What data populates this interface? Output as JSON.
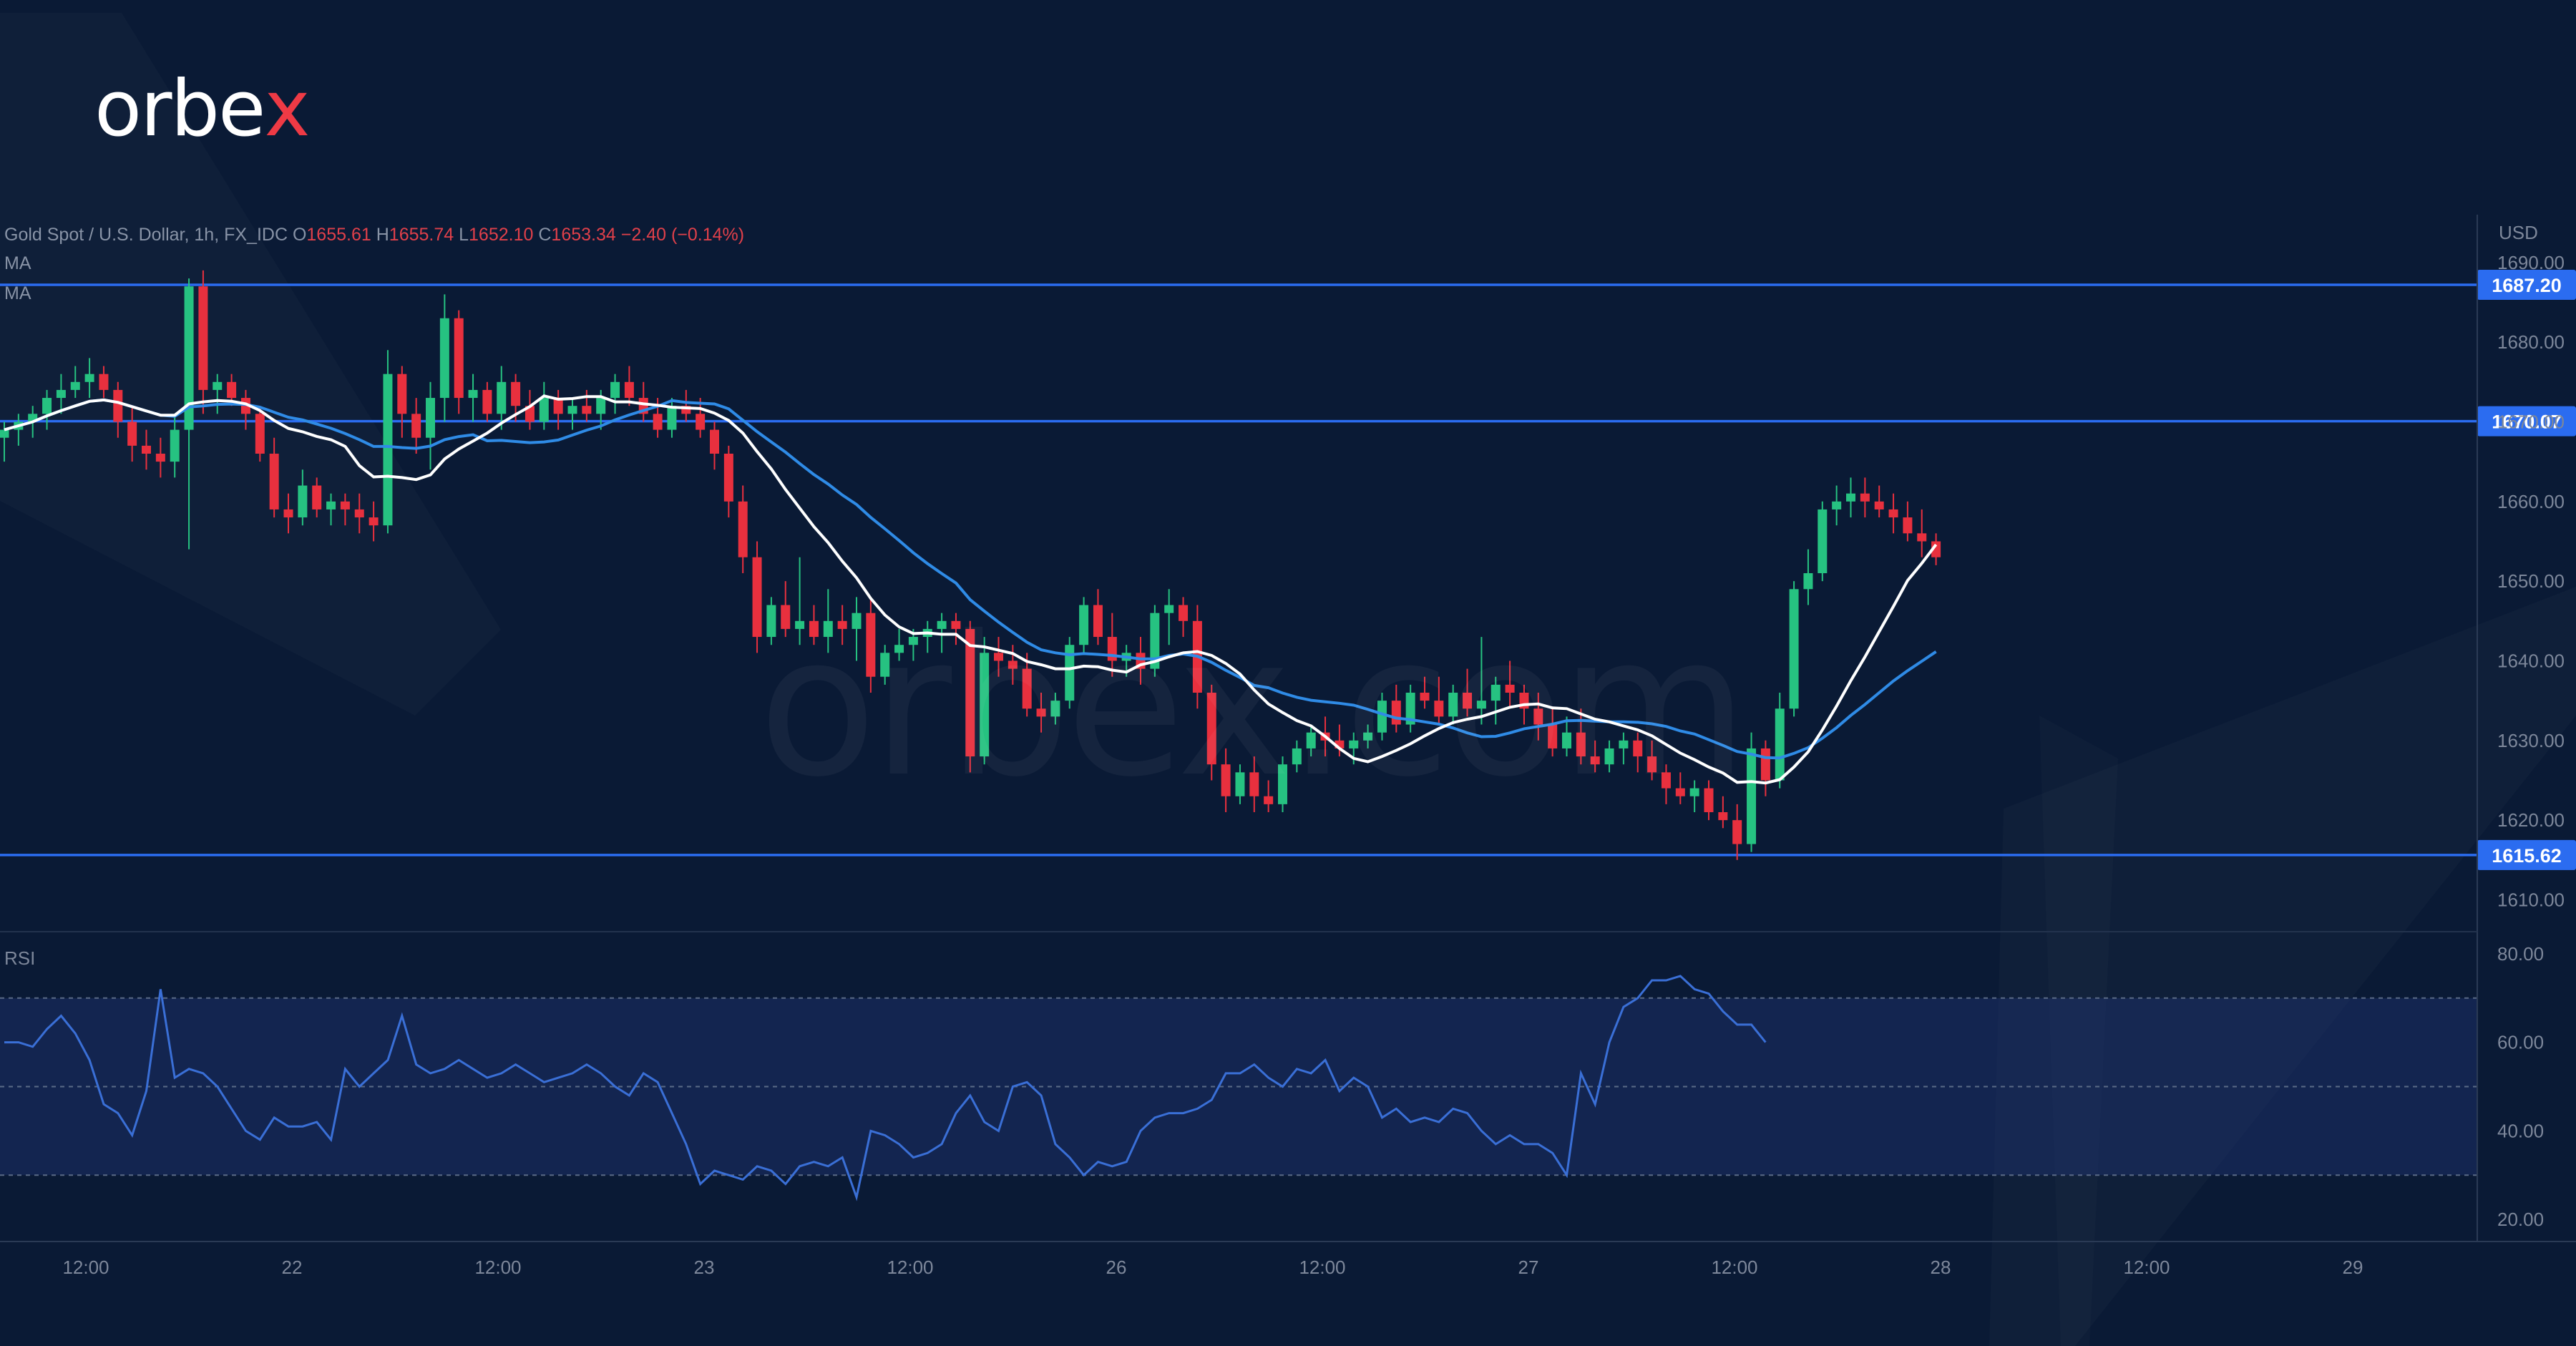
{
  "brand": {
    "logo_text": "orbex",
    "watermark": "orbex.com"
  },
  "header": {
    "symbol": "Gold Spot / U.S. Dollar, 1h, FX_IDC",
    "open_label": "O",
    "open": "1655.61",
    "high_label": "H",
    "high": "1655.74",
    "low_label": "L",
    "low": "1652.10",
    "close_label": "C",
    "close": "1653.34",
    "change": "−2.40 (−0.14%)",
    "ma1_label": "MA",
    "ma2_label": "MA"
  },
  "colors": {
    "background": "#0a1a35",
    "up": "#26c281",
    "down": "#e8303e",
    "level_line": "#2b6cf0",
    "ma_fast": "#ffffff",
    "ma_slow": "#2f8be6",
    "rsi": "#3a6fd6",
    "axis_text": "#7d879a"
  },
  "chart_data": [
    {
      "type": "candlestick",
      "title": "Gold Spot / U.S. Dollar, 1h, FX_IDC",
      "ylabel": "USD",
      "ylim": [
        1606,
        1696
      ],
      "y_ticks": [
        "1690.00",
        "1680.00",
        "1670.00",
        "1660.00",
        "1650.00",
        "1640.00",
        "1630.00",
        "1620.00",
        "1610.00"
      ],
      "x_tick_labels": [
        "12:00",
        "22",
        "12:00",
        "23",
        "12:00",
        "26",
        "12:00",
        "27",
        "12:00",
        "28",
        "12:00",
        "29"
      ],
      "horizontal_levels": [
        {
          "value": 1687.2,
          "label": "1687.20"
        },
        {
          "value": 1670.07,
          "label": "1670.07"
        },
        {
          "value": 1615.62,
          "label": "1615.62"
        }
      ],
      "series_names": [
        "MA",
        "MA"
      ],
      "candles_ohlc": [
        [
          1668,
          1670,
          1665,
          1669
        ],
        [
          1669,
          1671,
          1667,
          1670
        ],
        [
          1670,
          1672,
          1668,
          1671
        ],
        [
          1671,
          1674,
          1669,
          1673
        ],
        [
          1673,
          1676,
          1671,
          1674
        ],
        [
          1674,
          1677,
          1673,
          1675
        ],
        [
          1675,
          1678,
          1673,
          1676
        ],
        [
          1676,
          1677,
          1673,
          1674
        ],
        [
          1674,
          1675,
          1668,
          1670
        ],
        [
          1670,
          1672,
          1665,
          1667
        ],
        [
          1667,
          1669,
          1664,
          1666
        ],
        [
          1666,
          1668,
          1663,
          1665
        ],
        [
          1665,
          1671,
          1663,
          1669
        ],
        [
          1669,
          1688,
          1654,
          1687
        ],
        [
          1687,
          1689,
          1671,
          1674
        ],
        [
          1674,
          1676,
          1671,
          1675
        ],
        [
          1675,
          1676,
          1672,
          1673
        ],
        [
          1673,
          1674,
          1669,
          1671
        ],
        [
          1671,
          1672,
          1665,
          1666
        ],
        [
          1666,
          1668,
          1658,
          1659
        ],
        [
          1659,
          1661,
          1656,
          1658
        ],
        [
          1658,
          1664,
          1657,
          1662
        ],
        [
          1662,
          1663,
          1658,
          1659
        ],
        [
          1659,
          1661,
          1657,
          1660
        ],
        [
          1660,
          1661,
          1657,
          1659
        ],
        [
          1659,
          1661,
          1656,
          1658
        ],
        [
          1658,
          1660,
          1655,
          1657
        ],
        [
          1657,
          1679,
          1656,
          1676
        ],
        [
          1676,
          1677,
          1668,
          1671
        ],
        [
          1671,
          1673,
          1666,
          1668
        ],
        [
          1668,
          1675,
          1664,
          1673
        ],
        [
          1673,
          1686,
          1670,
          1683
        ],
        [
          1683,
          1684,
          1671,
          1673
        ],
        [
          1673,
          1676,
          1670,
          1674
        ],
        [
          1674,
          1675,
          1670,
          1671
        ],
        [
          1671,
          1677,
          1669,
          1675
        ],
        [
          1675,
          1676,
          1670,
          1672
        ],
        [
          1672,
          1674,
          1669,
          1670
        ],
        [
          1670,
          1675,
          1669,
          1673
        ],
        [
          1673,
          1674,
          1669,
          1671
        ],
        [
          1671,
          1673,
          1669,
          1672
        ],
        [
          1672,
          1674,
          1670,
          1671
        ],
        [
          1671,
          1674,
          1669,
          1673
        ],
        [
          1673,
          1676,
          1671,
          1675
        ],
        [
          1675,
          1677,
          1672,
          1673
        ],
        [
          1673,
          1675,
          1670,
          1671
        ],
        [
          1671,
          1673,
          1668,
          1669
        ],
        [
          1669,
          1673,
          1668,
          1672
        ],
        [
          1672,
          1674,
          1670,
          1671
        ],
        [
          1671,
          1673,
          1668,
          1669
        ],
        [
          1669,
          1670,
          1664,
          1666
        ],
        [
          1666,
          1667,
          1658,
          1660
        ],
        [
          1660,
          1662,
          1651,
          1653
        ],
        [
          1653,
          1655,
          1641,
          1643
        ],
        [
          1643,
          1648,
          1642,
          1647
        ],
        [
          1647,
          1650,
          1643,
          1644
        ],
        [
          1644,
          1653,
          1642,
          1645
        ],
        [
          1645,
          1647,
          1642,
          1643
        ],
        [
          1643,
          1649,
          1641,
          1645
        ],
        [
          1645,
          1647,
          1642,
          1644
        ],
        [
          1644,
          1648,
          1640,
          1646
        ],
        [
          1646,
          1648,
          1636,
          1638
        ],
        [
          1638,
          1642,
          1637,
          1641
        ],
        [
          1641,
          1644,
          1640,
          1642
        ],
        [
          1642,
          1644,
          1640,
          1643
        ],
        [
          1643,
          1645,
          1641,
          1644
        ],
        [
          1644,
          1646,
          1641,
          1645
        ],
        [
          1645,
          1646,
          1642,
          1644
        ],
        [
          1644,
          1645,
          1626,
          1628
        ],
        [
          1628,
          1643,
          1627,
          1641
        ],
        [
          1641,
          1643,
          1638,
          1640
        ],
        [
          1640,
          1642,
          1637,
          1639
        ],
        [
          1639,
          1641,
          1633,
          1634
        ],
        [
          1634,
          1636,
          1631,
          1633
        ],
        [
          1633,
          1636,
          1632,
          1635
        ],
        [
          1635,
          1643,
          1634,
          1642
        ],
        [
          1642,
          1648,
          1641,
          1647
        ],
        [
          1647,
          1649,
          1642,
          1643
        ],
        [
          1643,
          1646,
          1638,
          1640
        ],
        [
          1640,
          1642,
          1638,
          1641
        ],
        [
          1641,
          1643,
          1637,
          1639
        ],
        [
          1639,
          1647,
          1638,
          1646
        ],
        [
          1646,
          1649,
          1642,
          1647
        ],
        [
          1647,
          1648,
          1643,
          1645
        ],
        [
          1645,
          1647,
          1634,
          1636
        ],
        [
          1636,
          1637,
          1625,
          1627
        ],
        [
          1627,
          1629,
          1621,
          1623
        ],
        [
          1623,
          1627,
          1622,
          1626
        ],
        [
          1626,
          1628,
          1621,
          1623
        ],
        [
          1623,
          1625,
          1621,
          1622
        ],
        [
          1622,
          1628,
          1621,
          1627
        ],
        [
          1627,
          1630,
          1626,
          1629
        ],
        [
          1629,
          1632,
          1628,
          1631
        ],
        [
          1631,
          1633,
          1628,
          1630
        ],
        [
          1630,
          1632,
          1628,
          1629
        ],
        [
          1629,
          1631,
          1627,
          1630
        ],
        [
          1630,
          1632,
          1629,
          1631
        ],
        [
          1631,
          1636,
          1630,
          1635
        ],
        [
          1635,
          1637,
          1631,
          1632
        ],
        [
          1632,
          1637,
          1631,
          1636
        ],
        [
          1636,
          1638,
          1634,
          1635
        ],
        [
          1635,
          1638,
          1632,
          1633
        ],
        [
          1633,
          1637,
          1632,
          1636
        ],
        [
          1636,
          1639,
          1633,
          1634
        ],
        [
          1634,
          1643,
          1632,
          1635
        ],
        [
          1635,
          1638,
          1632,
          1637
        ],
        [
          1637,
          1640,
          1634,
          1636
        ],
        [
          1636,
          1637,
          1632,
          1634
        ],
        [
          1634,
          1636,
          1630,
          1632
        ],
        [
          1632,
          1634,
          1628,
          1629
        ],
        [
          1629,
          1633,
          1628,
          1631
        ],
        [
          1631,
          1634,
          1627,
          1628
        ],
        [
          1628,
          1630,
          1626,
          1627
        ],
        [
          1627,
          1630,
          1626,
          1629
        ],
        [
          1629,
          1631,
          1627,
          1630
        ],
        [
          1630,
          1631,
          1626,
          1628
        ],
        [
          1628,
          1630,
          1625,
          1626
        ],
        [
          1626,
          1627,
          1622,
          1624
        ],
        [
          1624,
          1626,
          1622,
          1623
        ],
        [
          1623,
          1625,
          1621,
          1624
        ],
        [
          1624,
          1625,
          1620,
          1621
        ],
        [
          1621,
          1623,
          1619,
          1620
        ],
        [
          1620,
          1622,
          1615,
          1617
        ],
        [
          1617,
          1631,
          1616,
          1629
        ],
        [
          1629,
          1630,
          1623,
          1625
        ],
        [
          1625,
          1636,
          1624,
          1634
        ],
        [
          1634,
          1650,
          1633,
          1649
        ],
        [
          1649,
          1654,
          1647,
          1651
        ],
        [
          1651,
          1660,
          1650,
          1659
        ],
        [
          1659,
          1662,
          1657,
          1660
        ],
        [
          1660,
          1663,
          1658,
          1661
        ],
        [
          1661,
          1663,
          1658,
          1660
        ],
        [
          1660,
          1662,
          1658,
          1659
        ],
        [
          1659,
          1661,
          1656,
          1658
        ],
        [
          1658,
          1660,
          1655,
          1656
        ],
        [
          1656,
          1659,
          1653,
          1655
        ],
        [
          1655,
          1656,
          1652,
          1653
        ]
      ]
    },
    {
      "type": "line",
      "title": "RSI",
      "ylim": [
        15,
        85
      ],
      "y_ticks": [
        "80.00",
        "60.00",
        "40.00",
        "20.00"
      ],
      "bands": [
        70,
        50,
        30
      ],
      "values": [
        60,
        60,
        59,
        63,
        66,
        62,
        56,
        46,
        44,
        39,
        49,
        72,
        52,
        54,
        53,
        50,
        45,
        40,
        38,
        43,
        41,
        41,
        42,
        38,
        54,
        50,
        53,
        56,
        66,
        55,
        53,
        54,
        56,
        54,
        52,
        53,
        55,
        53,
        51,
        52,
        53,
        55,
        53,
        50,
        48,
        53,
        51,
        44,
        37,
        28,
        31,
        30,
        29,
        32,
        31,
        28,
        32,
        33,
        32,
        34,
        25,
        40,
        39,
        37,
        34,
        35,
        37,
        44,
        48,
        42,
        40,
        50,
        51,
        48,
        37,
        34,
        30,
        33,
        32,
        33,
        40,
        43,
        44,
        44,
        45,
        47,
        53,
        53,
        55,
        52,
        50,
        54,
        53,
        56,
        49,
        52,
        50,
        43,
        45,
        42,
        43,
        42,
        45,
        44,
        40,
        37,
        39,
        37,
        37,
        35,
        30,
        53,
        46,
        60,
        68,
        70,
        74,
        74,
        75,
        72,
        71,
        67,
        64,
        64,
        60
      ]
    }
  ]
}
